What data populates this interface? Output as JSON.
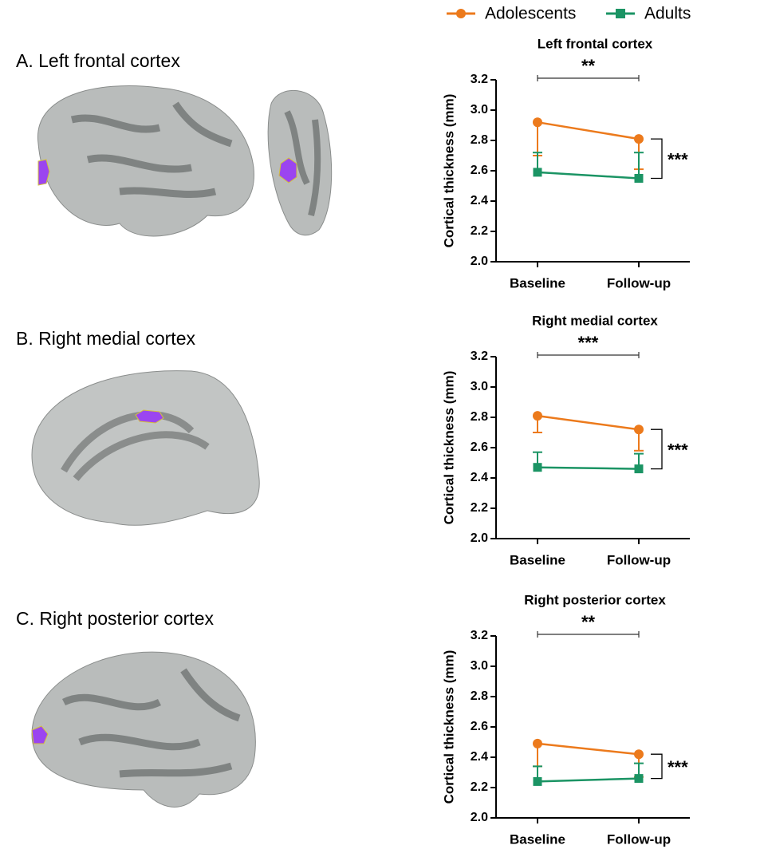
{
  "panel_labels": [
    "A. Left frontal cortex",
    "B. Right medial cortex",
    "C. Right posterior cortex"
  ],
  "chart_data": [
    {
      "type": "line",
      "title": "Left frontal cortex",
      "y_label": "Cortical thickness (mm)",
      "categories": [
        "Baseline",
        "Follow-up"
      ],
      "series": [
        {
          "name": "Adolescents",
          "color": "#ec7a1c",
          "values": [
            2.92,
            2.81
          ],
          "errors": [
            0.22,
            0.2
          ]
        },
        {
          "name": "Adults",
          "color": "#1b9464",
          "values": [
            2.59,
            2.55
          ],
          "errors": [
            0.13,
            0.17
          ]
        }
      ],
      "ylim": [
        2.0,
        3.2
      ],
      "yticks": [
        {
          "value": 2.0,
          "label": "2.0"
        },
        2.2,
        2.4,
        2.6,
        2.8,
        {
          "value": 3.0,
          "label": "3.0"
        },
        3.2
      ],
      "top_annotation": "**",
      "side_annotation": "***"
    },
    {
      "type": "line",
      "title": "Right medial cortex",
      "y_label": "Cortical thickness (mm)",
      "categories": [
        "Baseline",
        "Follow-up"
      ],
      "series": [
        {
          "name": "Adolescents",
          "color": "#ec7a1c",
          "values": [
            2.81,
            2.72
          ],
          "errors": [
            0.11,
            0.14
          ]
        },
        {
          "name": "Adults",
          "color": "#1b9464",
          "values": [
            2.47,
            2.46
          ],
          "errors": [
            0.1,
            0.1
          ]
        }
      ],
      "ylim": [
        2.0,
        3.2
      ],
      "yticks": [
        {
          "value": 2.0,
          "label": "2.0"
        },
        2.2,
        2.4,
        2.6,
        2.8,
        {
          "value": 3.0,
          "label": "3.0"
        },
        3.2
      ],
      "top_annotation": "***",
      "side_annotation": "***"
    },
    {
      "type": "line",
      "title": "Right posterior cortex",
      "y_label": "Cortical thickness (mm)",
      "categories": [
        "Baseline",
        "Follow-up"
      ],
      "series": [
        {
          "name": "Adolescents",
          "color": "#ec7a1c",
          "values": [
            2.49,
            2.42
          ],
          "errors": [
            0.15,
            0.15
          ]
        },
        {
          "name": "Adults",
          "color": "#1b9464",
          "values": [
            2.24,
            2.26
          ],
          "errors": [
            0.1,
            0.1
          ]
        }
      ],
      "ylim": [
        2.0,
        3.2
      ],
      "yticks": [
        {
          "value": 2.0,
          "label": "2.0"
        },
        2.2,
        2.4,
        2.6,
        2.8,
        {
          "value": 3.0,
          "label": "3.0"
        },
        3.2
      ],
      "top_annotation": "**",
      "side_annotation": "***"
    }
  ]
}
